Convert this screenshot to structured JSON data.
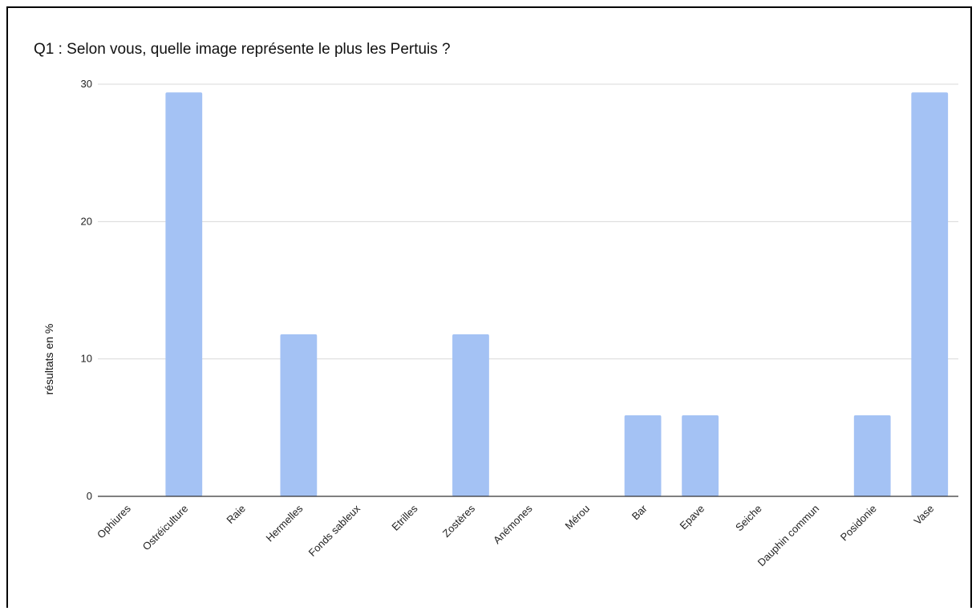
{
  "chart_data": {
    "type": "bar",
    "title": "Q1 : Selon vous, quelle image représente le plus les Pertuis ?",
    "xlabel": "",
    "ylabel": "résultats en %",
    "ylim": [
      0,
      30
    ],
    "yticks": [
      0,
      10,
      20,
      30
    ],
    "grid": true,
    "bar_color": "#a4c2f4",
    "categories": [
      "Ophiures",
      "Ostréiculture",
      "Raie",
      "Hermelles",
      "Fonds sableux",
      "Etrilles",
      "Zostères",
      "Anémones",
      "Mérou",
      "Bar",
      "Epave",
      "Seiche",
      "Dauphin commun",
      "Posidonie",
      "Vase"
    ],
    "values": [
      0,
      29.4,
      0,
      11.8,
      0,
      0,
      11.8,
      0,
      0,
      5.9,
      5.9,
      0,
      0,
      5.9,
      29.4
    ]
  }
}
